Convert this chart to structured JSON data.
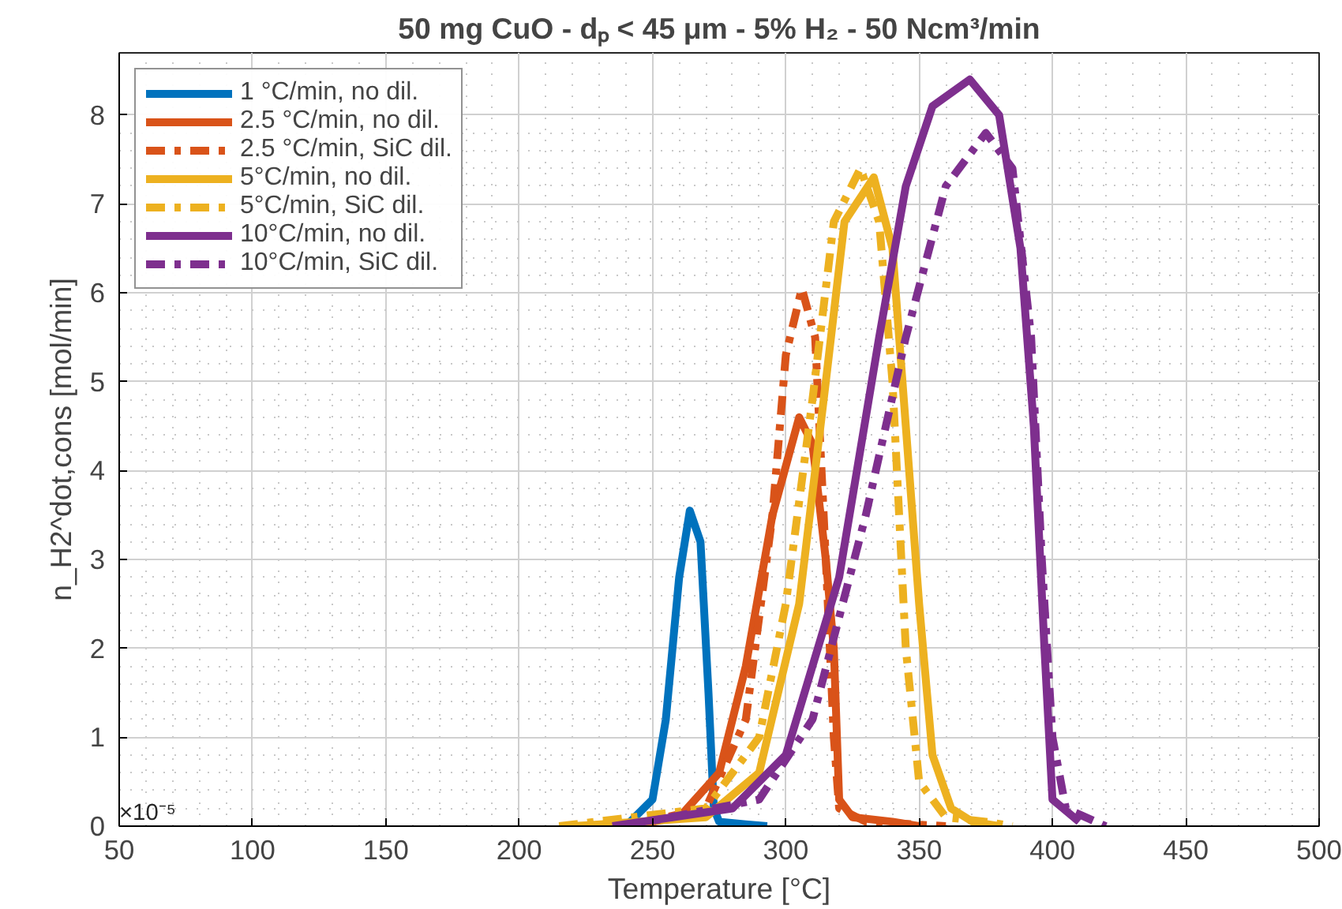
{
  "chart_data": {
    "type": "line",
    "title": "50 mg CuO - dₚ < 45 μm - 5% H₂ - 50 Ncm³/min",
    "xlabel": "Temperature [°C]",
    "ylabel": "n_H2^dot,cons [mol/min]",
    "annotations": [
      "×10⁻⁵"
    ],
    "xlim": [
      50,
      500
    ],
    "xticks": [
      50,
      100,
      150,
      200,
      250,
      300,
      350,
      400,
      450,
      500
    ],
    "ylim": [
      0,
      8.7
    ],
    "yticks": [
      0,
      1,
      2,
      3,
      4,
      5,
      6,
      7,
      8
    ],
    "grid": true,
    "legend": "top left",
    "marker": "none",
    "series": [
      {
        "name": "1 °C/min, no dil.",
        "color": "#0072bd",
        "line_style": "solid",
        "x": [
          225,
          240,
          250,
          255,
          260,
          264,
          268,
          271,
          273,
          275,
          285,
          293
        ],
        "values": [
          0,
          0,
          0.3,
          1.2,
          2.8,
          3.55,
          3.2,
          1.5,
          0.2,
          0.05,
          0.02,
          0
        ]
      },
      {
        "name": "2.5 °C/min, no dil.",
        "color": "#d95319",
        "line_style": "solid",
        "x": [
          240,
          260,
          275,
          285,
          295,
          305,
          310,
          315,
          318,
          320,
          325,
          340,
          350
        ],
        "values": [
          0,
          0.1,
          0.6,
          1.8,
          3.5,
          4.6,
          4.3,
          3.0,
          2.0,
          0.3,
          0.1,
          0.05,
          0
        ]
      },
      {
        "name": "2.5 °C/min, SiC dil.",
        "color": "#d95319",
        "line_style": "dashdot",
        "x": [
          240,
          270,
          285,
          295,
          300,
          306,
          311,
          315,
          318,
          320,
          330,
          360
        ],
        "values": [
          0,
          0.2,
          1.2,
          3.5,
          5.3,
          6.05,
          5.5,
          3.0,
          1.0,
          0.2,
          0.05,
          0
        ]
      },
      {
        "name": "5°C/min, no dil.",
        "color": "#edb120",
        "line_style": "solid",
        "x": [
          220,
          270,
          290,
          305,
          315,
          322,
          333,
          340,
          345,
          350,
          355,
          362,
          370,
          380
        ],
        "values": [
          0,
          0.1,
          0.6,
          2.5,
          5.0,
          6.8,
          7.3,
          6.5,
          4.5,
          2.5,
          0.8,
          0.2,
          0.05,
          0
        ]
      },
      {
        "name": "5°C/min, SiC dil.",
        "color": "#edb120",
        "line_style": "dashdot",
        "x": [
          215,
          270,
          290,
          300,
          310,
          318,
          328,
          335,
          340,
          345,
          350,
          360,
          375,
          385
        ],
        "values": [
          0,
          0.2,
          1.0,
          2.5,
          4.8,
          6.8,
          7.4,
          6.8,
          5.0,
          2.0,
          0.5,
          0.1,
          0.05,
          0
        ]
      },
      {
        "name": "10°C/min, no dil.",
        "color": "#7e2f8e",
        "line_style": "solid",
        "x": [
          235,
          280,
          300,
          320,
          335,
          345,
          355,
          369,
          380,
          388,
          393,
          397,
          400,
          410
        ],
        "values": [
          0,
          0.2,
          0.8,
          2.8,
          5.5,
          7.2,
          8.1,
          8.4,
          8.0,
          6.5,
          4.5,
          2.0,
          0.3,
          0.05
        ]
      },
      {
        "name": "10°C/min, SiC dil.",
        "color": "#7e2f8e",
        "line_style": "dashdot",
        "x": [
          240,
          290,
          310,
          330,
          345,
          360,
          375,
          385,
          392,
          396,
          400,
          405,
          420
        ],
        "values": [
          0,
          0.3,
          1.2,
          3.5,
          5.5,
          7.2,
          7.8,
          7.4,
          5.5,
          3.0,
          1.0,
          0.2,
          0
        ]
      }
    ]
  }
}
